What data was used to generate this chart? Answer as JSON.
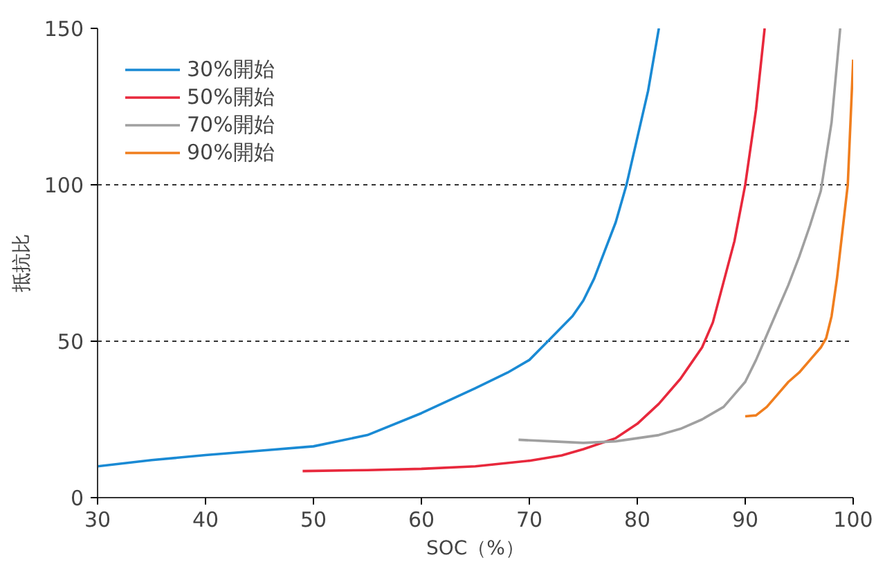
{
  "chart_data": {
    "type": "line",
    "xlabel": "SOC（%）",
    "ylabel": "抵抗比",
    "xlim": [
      30,
      100
    ],
    "ylim": [
      0,
      150
    ],
    "xticks": [
      30,
      40,
      50,
      60,
      70,
      80,
      90,
      100
    ],
    "yticks": [
      0,
      50,
      100,
      150
    ],
    "grid": "y",
    "legend": "top left",
    "line_style": "solid",
    "series": [
      {
        "name": "30%開始",
        "color": "#1a8ad4",
        "x": [
          30,
          35,
          40,
          45,
          50,
          55,
          60,
          65,
          68,
          70,
          72,
          74,
          75,
          76,
          77,
          78,
          79,
          80,
          81,
          82
        ],
        "values": [
          10,
          12,
          13.6,
          15,
          16.4,
          20,
          27,
          35,
          40,
          44,
          51,
          58,
          63,
          70,
          79,
          88,
          100,
          115,
          130,
          150
        ]
      },
      {
        "name": "50%開始",
        "color": "#e8283c",
        "x": [
          49,
          55,
          60,
          65,
          70,
          73,
          75,
          78,
          80,
          82,
          84,
          85,
          86,
          87,
          88,
          89,
          90,
          91,
          91.8
        ],
        "values": [
          8.5,
          8.8,
          9.2,
          10,
          11.8,
          13.5,
          15.5,
          19,
          23.6,
          30,
          38,
          43,
          48,
          56,
          69,
          82,
          100,
          124,
          150
        ]
      },
      {
        "name": "70%開始",
        "color": "#a0a0a0",
        "x": [
          69,
          72,
          75,
          78,
          80,
          82,
          84,
          86,
          88,
          89,
          90,
          91,
          92,
          93,
          94,
          95,
          96,
          97,
          98,
          98.8
        ],
        "values": [
          18.5,
          18,
          17.5,
          18,
          19,
          20,
          22,
          25,
          29,
          33,
          37,
          44,
          52,
          60,
          68,
          77,
          87,
          98,
          120,
          150
        ]
      },
      {
        "name": "90%開始",
        "color": "#f07e1e",
        "x": [
          90,
          91,
          92,
          93,
          94,
          95,
          96,
          97,
          97.5,
          98,
          98.5,
          99,
          99.5,
          100
        ],
        "values": [
          26,
          26.3,
          29,
          33,
          37,
          40,
          44,
          48,
          51,
          58,
          70,
          85,
          100,
          140
        ]
      }
    ]
  }
}
